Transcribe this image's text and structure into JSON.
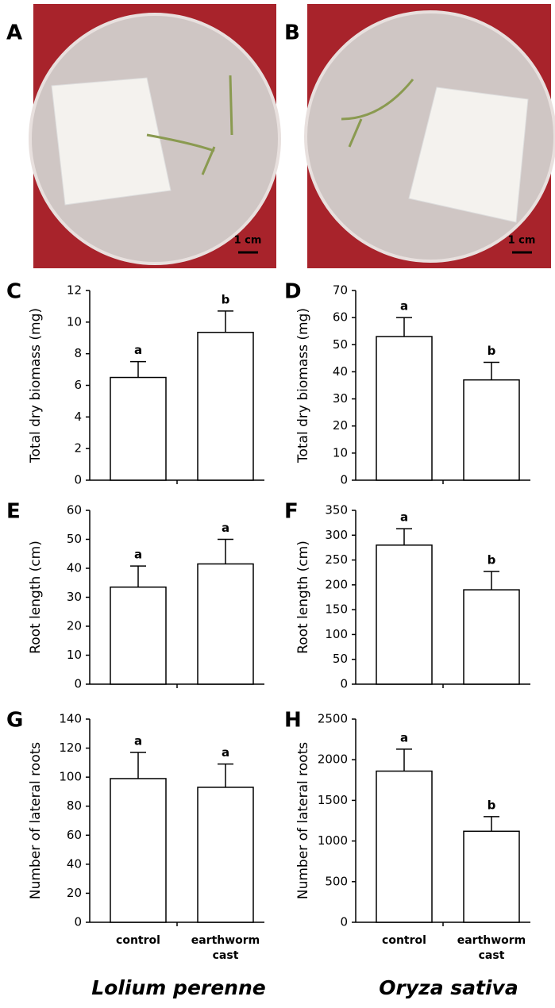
{
  "figure": {
    "photos": [
      {
        "label": "A",
        "scale_bar": "1 cm"
      },
      {
        "label": "B",
        "scale_bar": "1 cm"
      }
    ],
    "species": [
      "Lolium perenne",
      "Oryza sativa"
    ]
  },
  "chart_data": [
    {
      "type": "bar",
      "label": "C",
      "ylabel": "Total dry biomass (mg)",
      "categories": [
        null,
        null
      ],
      "values": [
        6.5,
        9.35
      ],
      "errors": [
        1.0,
        1.35
      ],
      "letters": [
        "a",
        "b"
      ],
      "ylim": [
        0,
        12
      ],
      "yticks": [
        0,
        2,
        4,
        6,
        8,
        10,
        12
      ],
      "color": "#ffffff"
    },
    {
      "type": "bar",
      "label": "D",
      "ylabel": "Total dry biomass (mg)",
      "categories": [
        null,
        null
      ],
      "values": [
        53,
        37
      ],
      "errors": [
        7,
        6.5
      ],
      "letters": [
        "a",
        "b"
      ],
      "ylim": [
        0,
        70
      ],
      "yticks": [
        0,
        10,
        20,
        30,
        40,
        50,
        60,
        70
      ],
      "color": "#ffffff"
    },
    {
      "type": "bar",
      "label": "E",
      "ylabel": "Root length (cm)",
      "categories": [
        null,
        null
      ],
      "values": [
        33.5,
        41.5
      ],
      "errors": [
        7.3,
        8.5
      ],
      "letters": [
        "a",
        "a"
      ],
      "ylim": [
        0,
        60
      ],
      "yticks": [
        0,
        10,
        20,
        30,
        40,
        50,
        60
      ],
      "color": "#ffffff"
    },
    {
      "type": "bar",
      "label": "F",
      "ylabel": "Root length (cm)",
      "categories": [
        null,
        null
      ],
      "values": [
        280,
        190
      ],
      "errors": [
        33,
        37
      ],
      "letters": [
        "a",
        "b"
      ],
      "ylim": [
        0,
        350
      ],
      "yticks": [
        0,
        50,
        100,
        150,
        200,
        250,
        300,
        350
      ],
      "color": "#ffffff"
    },
    {
      "type": "bar",
      "label": "G",
      "ylabel": "Number of lateral roots",
      "categories": [
        "control",
        "earthworm cast"
      ],
      "values": [
        99,
        93
      ],
      "errors": [
        18,
        16
      ],
      "letters": [
        "a",
        "a"
      ],
      "ylim": [
        0,
        140
      ],
      "yticks": [
        0,
        20,
        40,
        60,
        80,
        100,
        120,
        140
      ],
      "color": "#ffffff"
    },
    {
      "type": "bar",
      "label": "H",
      "ylabel": "Number of lateral roots",
      "categories": [
        "control",
        "earthworm cast"
      ],
      "values": [
        1860,
        1120
      ],
      "errors": [
        270,
        180
      ],
      "letters": [
        "a",
        "b"
      ],
      "ylim": [
        0,
        2500
      ],
      "yticks": [
        0,
        500,
        1000,
        1500,
        2000,
        2500
      ],
      "color": "#ffffff"
    }
  ]
}
